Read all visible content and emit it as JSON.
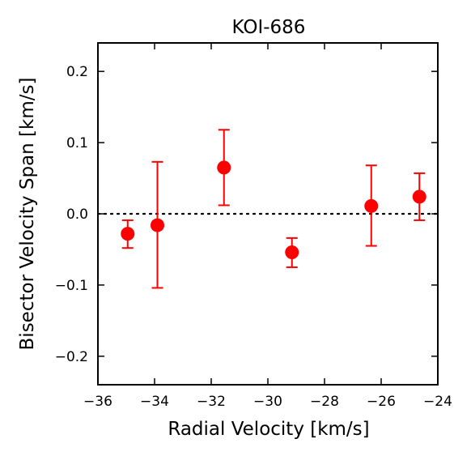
{
  "chart_data": {
    "type": "scatter",
    "title": "KOI-686",
    "xlabel": "Radial Velocity [km/s]",
    "ylabel": "Bisector Velocity Span [km/s]",
    "xlim": [
      -36,
      -24
    ],
    "ylim": [
      -0.24,
      0.24
    ],
    "xticks": [
      -36,
      -34,
      -32,
      -30,
      -28,
      -26,
      -24
    ],
    "xtick_labels": [
      "−36",
      "−34",
      "−32",
      "−30",
      "−28",
      "−26",
      "−24"
    ],
    "yticks": [
      -0.2,
      -0.1,
      0.0,
      0.1,
      0.2
    ],
    "ytick_labels": [
      "−0.2",
      "−0.1",
      "0.0",
      "0.1",
      "0.2"
    ],
    "grid": false,
    "reference_line": {
      "y": 0.0,
      "style": "dotted",
      "color": "#000000"
    },
    "marker_color": "#ff0000",
    "points": [
      {
        "x": -34.95,
        "y": -0.028,
        "err_low": 0.02,
        "err_high": 0.019
      },
      {
        "x": -33.9,
        "y": -0.016,
        "err_low": 0.088,
        "err_high": 0.089
      },
      {
        "x": -31.55,
        "y": 0.065,
        "err_low": 0.053,
        "err_high": 0.053
      },
      {
        "x": -29.15,
        "y": -0.054,
        "err_low": 0.021,
        "err_high": 0.02
      },
      {
        "x": -26.35,
        "y": 0.011,
        "err_low": 0.056,
        "err_high": 0.057
      },
      {
        "x": -24.65,
        "y": 0.024,
        "err_low": 0.033,
        "err_high": 0.033
      }
    ]
  }
}
